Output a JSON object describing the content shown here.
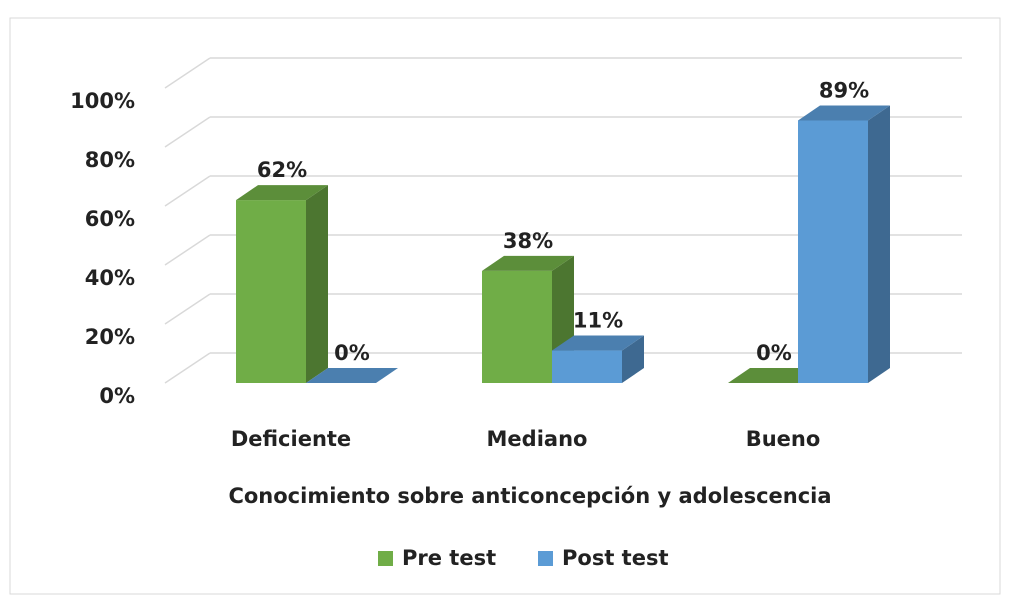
{
  "chart_data": {
    "type": "bar3d",
    "xlabel": "Conocimiento sobre anticoncepción y adolescencia",
    "categories": [
      "Deficiente",
      "Mediano",
      "Bueno"
    ],
    "series": [
      {
        "name": "Pre test",
        "color": "#70ad47",
        "values": [
          62,
          38,
          0
        ],
        "value_labels": [
          "62%",
          "38%",
          "0%"
        ]
      },
      {
        "name": "Post test",
        "color": "#5b9bd5",
        "values": [
          0,
          11,
          89
        ],
        "value_labels": [
          "0%",
          "11%",
          "89%"
        ]
      }
    ],
    "ylim": [
      0,
      100
    ],
    "yticks": [
      {
        "value": 0,
        "label": "0%"
      },
      {
        "value": 20,
        "label": "20%"
      },
      {
        "value": 40,
        "label": "40%"
      },
      {
        "value": 60,
        "label": "60%"
      },
      {
        "value": 80,
        "label": "80%"
      },
      {
        "value": 100,
        "label": "100%"
      }
    ],
    "grid": true,
    "legend": "bottom"
  }
}
